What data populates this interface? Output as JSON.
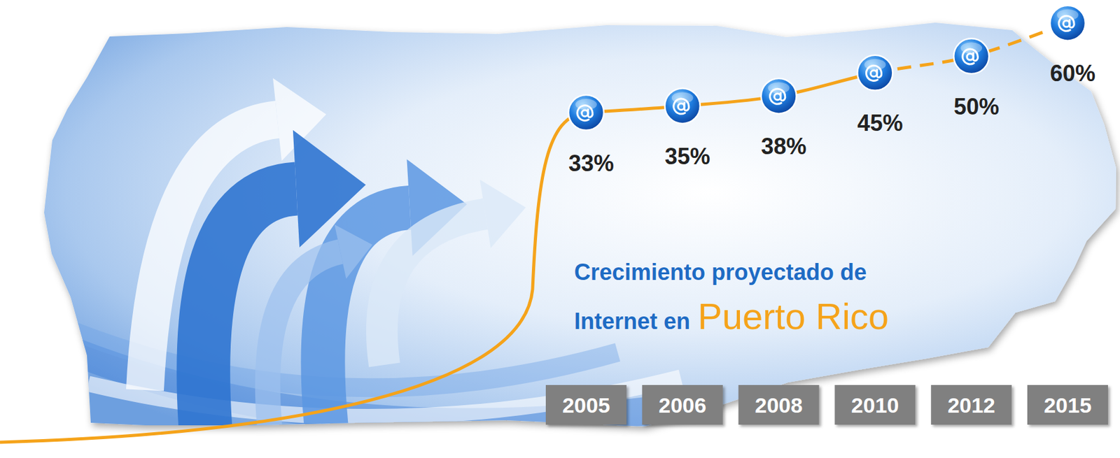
{
  "chart_data": {
    "type": "line",
    "title": "Crecimiento proyectado de Internet en",
    "subtitle": "Puerto Rico",
    "categories": [
      "2005",
      "2006",
      "2008",
      "2010",
      "2012",
      "2015"
    ],
    "values": [
      33,
      35,
      38,
      45,
      50,
      60
    ],
    "value_labels": [
      "33%",
      "35%",
      "38%",
      "45%",
      "50%",
      "60%"
    ],
    "data_labels": true,
    "ylim": [
      0,
      66
    ],
    "tick_labels": "x",
    "color": "#f5a31a",
    "marker": "circle"
  }
}
